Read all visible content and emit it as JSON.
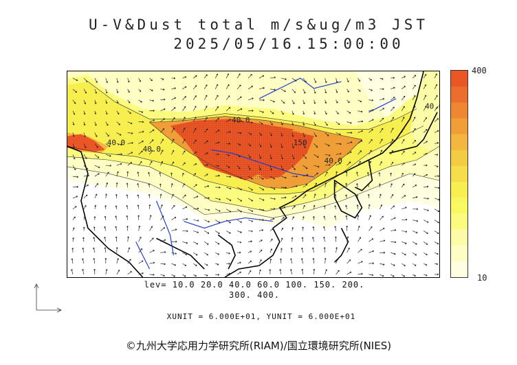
{
  "title": {
    "line1": "U-V&Dust total m/s&ug/m3 JST",
    "line2": "2025/05/16.15:00:00"
  },
  "legend": {
    "max_label": "400",
    "min_label": "10",
    "colors": [
      "#fefee0",
      "#fdfdc4",
      "#fcfca8",
      "#fbfb80",
      "#f8f860",
      "#f7ee50",
      "#f5de4a",
      "#f4cc44",
      "#f2b63e",
      "#f09e38",
      "#ee8632",
      "#ec6e2c",
      "#ea5626"
    ]
  },
  "contour_levels": {
    "line1": "lev= 10.0 20.0 40.0 60.0 100. 150. 200.",
    "line2": "300. 400."
  },
  "units_line": "XUNIT = 6.000E+01, YUNIT = 6.000E+01",
  "map_labels": [
    "40.0",
    "40.0",
    "40.0",
    "40.0",
    "150",
    "40.0"
  ],
  "credit": "©九州大学応用力学研究所(RIAM)/国立環境研究所(NIES)"
}
